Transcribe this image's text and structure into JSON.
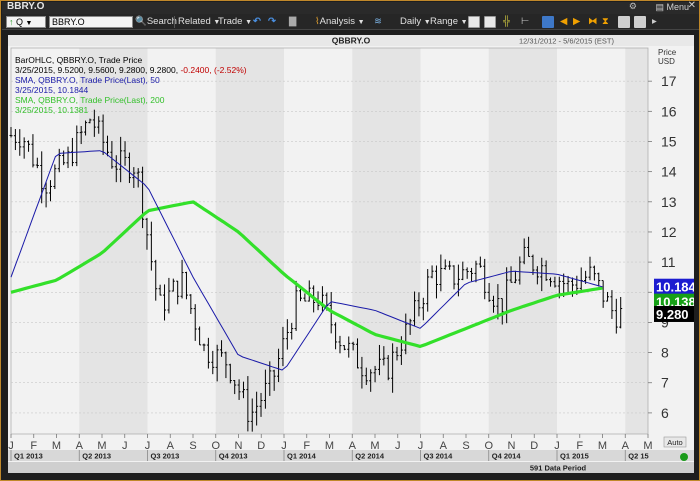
{
  "window": {
    "title": "BBRY.O",
    "menu_label": "Menu"
  },
  "toolbar": {
    "ric_value": "BBRY.O",
    "quote_label": "Q",
    "search_label": "Search",
    "related_label": "Related",
    "trade_label": "Trade",
    "analysis_label": "Analysis",
    "interval_label": "Daily",
    "range_label": "Range"
  },
  "header": {
    "symbol": "QBBRY.O",
    "date_range": "12/31/2012 - 5/6/2015 (EST)",
    "price_label": "Price",
    "currency_label": "USD"
  },
  "legend": {
    "l1": "BarOHLC, QBBRY.O, Trade Price",
    "l2a": "3/25/2015, 9.5200, 9.5600, 9.2800, 9.2800,",
    "l2b": "-0.2400, (-2.52%)",
    "l3": "SMA, QBBRY.O, Trade Price(Last),  50",
    "l4": "3/25/2015, 10.1844",
    "l5": "SMA, QBBRY.O, Trade Price(Last),  200",
    "l6": "3/25/2015, 10.1381"
  },
  "footer": {
    "period_label": "591 Data Period",
    "auto_label": "Auto"
  },
  "colors": {
    "bars": "#000000",
    "sma50": "#1a1aa8",
    "sma200": "#33e02a",
    "background": "#f2f2f2",
    "alt_band": "#e4e4e4",
    "last_tag": "#000000",
    "sma50_tag": "#1c1cd0",
    "sma200_tag": "#16a016"
  },
  "chart_data": {
    "type": "ohlc",
    "title": "QBBRY.O",
    "ylabel": "Price USD",
    "ylim": [
      5.3,
      18.1
    ],
    "y_ticks": [
      6,
      7,
      8,
      9,
      10,
      11,
      12,
      13,
      14,
      15,
      16,
      17
    ],
    "month_ticks": [
      "J",
      "F",
      "M",
      "A",
      "M",
      "J",
      "J",
      "A",
      "S",
      "O",
      "N",
      "D",
      "J",
      "F",
      "M",
      "A",
      "M",
      "J",
      "J",
      "A",
      "S",
      "O",
      "N",
      "D",
      "J",
      "F",
      "M",
      "A",
      "M"
    ],
    "quarter_labels": [
      "Q1 2013",
      "Q2 2013",
      "Q3 2013",
      "Q4 2013",
      "Q1 2014",
      "Q2 2014",
      "Q3 2014",
      "Q4 2014",
      "Q1 2015",
      "Q2 15"
    ],
    "grid": true,
    "last_values": {
      "close": "9.280",
      "sma50": "10.184",
      "sma200": "10.138"
    },
    "series": [
      {
        "name": "Trade Price (approx. monthly close)",
        "x": [
          "2013-01",
          "2013-02",
          "2013-03",
          "2013-04",
          "2013-05",
          "2013-06",
          "2013-07",
          "2013-08",
          "2013-09",
          "2013-10",
          "2013-11",
          "2013-12",
          "2014-01",
          "2014-02",
          "2014-03",
          "2014-04",
          "2014-05",
          "2014-06",
          "2014-07",
          "2014-08",
          "2014-09",
          "2014-10",
          "2014-11",
          "2014-12",
          "2015-01",
          "2015-02",
          "2015-03"
        ],
        "values": [
          15.2,
          13.6,
          14.4,
          15.8,
          14.3,
          14.2,
          9.5,
          10.4,
          8.1,
          7.7,
          5.9,
          7.1,
          9.6,
          9.8,
          8.4,
          7.5,
          7.4,
          8.9,
          10.6,
          10.5,
          10.9,
          9.5,
          11.1,
          10.8,
          10.2,
          10.6,
          9.28
        ]
      },
      {
        "name": "SMA 50",
        "x": [
          "2013-01",
          "2013-03",
          "2013-05",
          "2013-07",
          "2013-09",
          "2013-11",
          "2014-01",
          "2014-03",
          "2014-05",
          "2014-07",
          "2014-09",
          "2014-11",
          "2015-01",
          "2015-03"
        ],
        "values": [
          10.5,
          14.6,
          14.7,
          13.5,
          10.5,
          7.9,
          7.4,
          9.7,
          9.4,
          8.8,
          10.3,
          10.7,
          10.6,
          10.18
        ]
      },
      {
        "name": "SMA 200",
        "x": [
          "2013-01",
          "2013-03",
          "2013-05",
          "2013-07",
          "2013-09",
          "2013-11",
          "2014-01",
          "2014-03",
          "2014-05",
          "2014-07",
          "2014-09",
          "2014-11",
          "2015-01",
          "2015-03"
        ],
        "values": [
          10.0,
          10.4,
          11.3,
          12.7,
          13.0,
          12.0,
          10.6,
          9.4,
          8.6,
          8.2,
          8.8,
          9.4,
          9.9,
          10.14
        ]
      }
    ]
  }
}
